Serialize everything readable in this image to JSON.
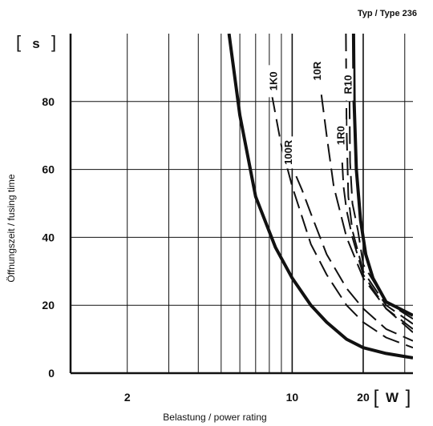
{
  "chart_data": {
    "type": "line",
    "title": "Typ / Type 236",
    "xlabel": "Belastung / power rating",
    "ylabel": "Öffnungszeit / fusing time",
    "x_unit": "W",
    "y_unit": "s",
    "x_scale": "log",
    "xlim": [
      1.15,
      32.5
    ],
    "ylim": [
      0,
      100
    ],
    "x_ticks": [
      {
        "value": 2,
        "label": "2"
      },
      {
        "value": 10,
        "label": "10"
      },
      {
        "value": 20,
        "label": "20"
      }
    ],
    "y_ticks": [
      {
        "value": 0,
        "label": "0"
      },
      {
        "value": 20,
        "label": "20"
      },
      {
        "value": 40,
        "label": "40"
      },
      {
        "value": 60,
        "label": "60"
      },
      {
        "value": 80,
        "label": "80"
      }
    ],
    "grid": true,
    "series": [
      {
        "name": "",
        "style": "solid-bold",
        "x": [
          5.4,
          6.0,
          7.0,
          8.5,
          10.0,
          12.0,
          14.0,
          17.0,
          20.0,
          25.0,
          32.5
        ],
        "y": [
          100,
          76,
          52,
          37,
          28,
          20,
          15,
          10,
          7.5,
          5.8,
          4.5
        ]
      },
      {
        "name": "1K0",
        "style": "dashed",
        "x": [
          8.2,
          9.0,
          10.0,
          12.0,
          14.0,
          17.0,
          20.0,
          25.0,
          32.5
        ],
        "y": [
          82,
          67,
          55,
          38,
          29,
          20,
          15,
          10.5,
          7.5
        ]
      },
      {
        "name": "100R",
        "style": "dashed",
        "x": [
          10.4,
          11.0,
          12.0,
          14.0,
          17.0,
          20.0,
          25.0,
          32.5
        ],
        "y": [
          58,
          54,
          47,
          35,
          25,
          19,
          13,
          9.5
        ]
      },
      {
        "name": "10R",
        "style": "dashed",
        "x": [
          13.3,
          14.0,
          15.0,
          17.0,
          20.0,
          25.0,
          32.5
        ],
        "y": [
          82,
          70,
          55,
          40,
          28,
          19,
          12
        ]
      },
      {
        "name": "1R0",
        "style": "dashed",
        "x": [
          16.3,
          16.5,
          17.0,
          18.0,
          20.0,
          25.0,
          32.5
        ],
        "y": [
          62,
          55,
          48,
          40,
          29,
          19,
          13
        ]
      },
      {
        "name": "",
        "style": "dashed",
        "x": [
          16.9,
          17.0,
          17.3,
          18.0,
          20.0,
          25.0,
          32.5
        ],
        "y": [
          100,
          72,
          52,
          42,
          30,
          20,
          14.5
        ]
      },
      {
        "name": "R10",
        "style": "dashed",
        "x": [
          17.5,
          17.6,
          18.0,
          19.0,
          20.0,
          25.0,
          32.5
        ],
        "y": [
          80,
          62,
          50,
          42,
          32,
          21,
          16
        ]
      },
      {
        "name": "",
        "style": "solid-bold",
        "x": [
          18.2,
          18.3,
          18.7,
          19.5,
          20.5,
          22.0,
          25.0,
          32.5
        ],
        "y": [
          100,
          80,
          60,
          45,
          35,
          28,
          21,
          17
        ]
      }
    ]
  }
}
